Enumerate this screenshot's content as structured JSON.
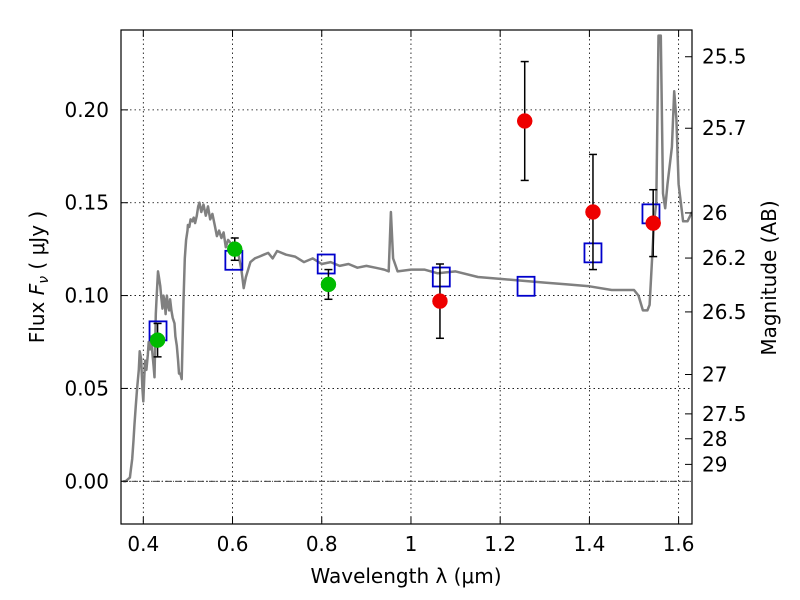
{
  "chart_data": {
    "type": "scatter",
    "xlabel": "Wavelength  λ (μm)",
    "ylabel": "Flux  Fν  ( μJy )",
    "y2label": "Magnitude (AB)",
    "xlim": [
      0.35,
      1.63
    ],
    "ylim": [
      -0.023,
      0.243
    ],
    "grid": true,
    "x_ticks": [
      0.4,
      0.6,
      0.8,
      1.0,
      1.2,
      1.4,
      1.6
    ],
    "x_tick_labels": [
      "0.4",
      "0.6",
      "0.8",
      "1",
      "1.2",
      "1.4",
      "1.6"
    ],
    "y_ticks": [
      0.0,
      0.05,
      0.1,
      0.15,
      0.2
    ],
    "y_tick_labels": [
      "0.00",
      "0.05",
      "0.10",
      "0.15",
      "0.20"
    ],
    "mag_ticks": [
      {
        "flux": 0.2286,
        "label": "25.5"
      },
      {
        "flux": 0.1901,
        "label": "25.7"
      },
      {
        "flux": 0.1445,
        "label": "26"
      },
      {
        "flux": 0.1202,
        "label": "26.2"
      },
      {
        "flux": 0.0912,
        "label": "26.5"
      },
      {
        "flux": 0.0575,
        "label": "27"
      },
      {
        "flux": 0.0363,
        "label": "27.5"
      },
      {
        "flux": 0.0229,
        "label": "28"
      },
      {
        "flux": 0.0091,
        "label": "29"
      }
    ],
    "colors": {
      "template": "#808080",
      "green_points": "#00bb00",
      "red_points": "#ee0000",
      "model_boxes": "#0000cc",
      "errorbars": "#000000"
    },
    "series": [
      {
        "name": "SED template",
        "style": "line",
        "x": [
          0.355,
          0.36,
          0.37,
          0.372,
          0.375,
          0.378,
          0.38,
          0.383,
          0.386,
          0.39,
          0.392,
          0.395,
          0.398,
          0.4,
          0.402,
          0.404,
          0.407,
          0.41,
          0.412,
          0.415,
          0.418,
          0.42,
          0.423,
          0.425,
          0.428,
          0.43,
          0.433,
          0.435,
          0.438,
          0.44,
          0.443,
          0.445,
          0.448,
          0.45,
          0.453,
          0.455,
          0.458,
          0.46,
          0.463,
          0.466,
          0.47,
          0.472,
          0.475,
          0.478,
          0.48,
          0.483,
          0.486,
          0.49,
          0.493,
          0.496,
          0.499,
          0.5,
          0.503,
          0.506,
          0.51,
          0.513,
          0.516,
          0.52,
          0.523,
          0.526,
          0.53,
          0.535,
          0.54,
          0.545,
          0.55,
          0.555,
          0.56,
          0.565,
          0.57,
          0.575,
          0.58,
          0.585,
          0.59,
          0.6,
          0.605,
          0.61,
          0.615,
          0.62,
          0.625,
          0.63,
          0.64,
          0.65,
          0.66,
          0.67,
          0.68,
          0.69,
          0.7,
          0.72,
          0.74,
          0.76,
          0.78,
          0.8,
          0.82,
          0.84,
          0.86,
          0.88,
          0.9,
          0.92,
          0.94,
          0.95,
          0.955,
          0.96,
          0.97,
          1.0,
          1.03,
          1.06,
          1.1,
          1.15,
          1.2,
          1.25,
          1.3,
          1.35,
          1.4,
          1.45,
          1.5,
          1.51,
          1.52,
          1.53,
          1.535,
          1.545,
          1.55,
          1.555,
          1.56,
          1.565,
          1.57,
          1.575,
          1.58,
          1.585,
          1.59,
          1.595,
          1.6,
          1.61,
          1.62,
          1.63
        ],
        "y": [
          0.0,
          0.0,
          0.002,
          0.006,
          0.012,
          0.022,
          0.03,
          0.04,
          0.05,
          0.06,
          0.07,
          0.066,
          0.05,
          0.043,
          0.055,
          0.065,
          0.06,
          0.068,
          0.075,
          0.071,
          0.078,
          0.07,
          0.062,
          0.056,
          0.09,
          0.1,
          0.113,
          0.11,
          0.105,
          0.1,
          0.093,
          0.1,
          0.097,
          0.09,
          0.1,
          0.095,
          0.092,
          0.098,
          0.092,
          0.088,
          0.085,
          0.078,
          0.073,
          0.065,
          0.058,
          0.058,
          0.055,
          0.097,
          0.12,
          0.13,
          0.135,
          0.138,
          0.137,
          0.141,
          0.14,
          0.142,
          0.139,
          0.143,
          0.148,
          0.15,
          0.145,
          0.149,
          0.143,
          0.148,
          0.141,
          0.144,
          0.138,
          0.132,
          0.135,
          0.131,
          0.134,
          0.126,
          0.13,
          0.127,
          0.124,
          0.126,
          0.12,
          0.114,
          0.104,
          0.11,
          0.118,
          0.12,
          0.121,
          0.122,
          0.123,
          0.12,
          0.124,
          0.122,
          0.121,
          0.118,
          0.12,
          0.117,
          0.118,
          0.116,
          0.117,
          0.115,
          0.116,
          0.115,
          0.114,
          0.113,
          0.145,
          0.12,
          0.113,
          0.114,
          0.114,
          0.112,
          0.113,
          0.11,
          0.109,
          0.108,
          0.107,
          0.106,
          0.105,
          0.103,
          0.103,
          0.1,
          0.092,
          0.092,
          0.095,
          0.14,
          0.15,
          0.24,
          0.24,
          0.155,
          0.147,
          0.16,
          0.17,
          0.18,
          0.21,
          0.195,
          0.16,
          0.14,
          0.14,
          0.145
        ]
      },
      {
        "name": "Green detections",
        "style": "circle",
        "x": [
          0.432,
          0.605,
          0.815
        ],
        "y": [
          0.076,
          0.125,
          0.106
        ],
        "yerr": [
          0.009,
          0.006,
          0.008
        ]
      },
      {
        "name": "Red detections",
        "style": "circle",
        "x": [
          1.065,
          1.255,
          1.408,
          1.543
        ],
        "y": [
          0.097,
          0.194,
          0.145,
          0.139
        ],
        "yerr": [
          0.02,
          0.032,
          0.031,
          0.018
        ]
      },
      {
        "name": "Model photometry",
        "style": "open-square",
        "x": [
          0.433,
          0.603,
          0.81,
          1.068,
          1.258,
          1.408,
          1.538
        ],
        "y": [
          0.081,
          0.119,
          0.117,
          0.11,
          0.105,
          0.123,
          0.144
        ]
      }
    ]
  }
}
